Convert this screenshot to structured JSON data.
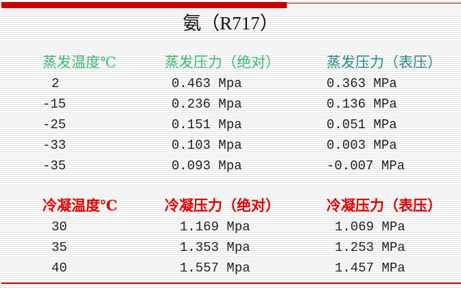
{
  "title": "氨（R717）",
  "colors": {
    "accent_bar": "#c80000",
    "evap_header": "#3cb878",
    "evap_gauge_header": "#2a8a85",
    "cond_header": "#e00000"
  },
  "evaporation": {
    "headers": [
      "蒸发温度℃",
      "蒸发压力（绝对）",
      "蒸发压力（表压）"
    ],
    "rows": [
      [
        "2",
        "0.463 Mpa",
        "0.363 MPa"
      ],
      [
        "-15",
        "0.236 Mpa",
        "0.136 MPa"
      ],
      [
        "-25",
        "0.151 Mpa",
        "0.051 MPa"
      ],
      [
        "-33",
        "0.103 Mpa",
        "0.003 MPa"
      ],
      [
        "-35",
        "0.093 Mpa",
        "-0.007 MPa"
      ]
    ]
  },
  "condensation": {
    "headers": [
      "冷凝温度℃",
      "冷凝压力（绝对）",
      "冷凝压力（表压）"
    ],
    "rows": [
      [
        "30",
        "1.169 Mpa",
        "1.069 MPa"
      ],
      [
        "35",
        "1.353 Mpa",
        "1.253 MPa"
      ],
      [
        "40",
        "1.557 Mpa",
        "1.457 MPa"
      ]
    ]
  }
}
